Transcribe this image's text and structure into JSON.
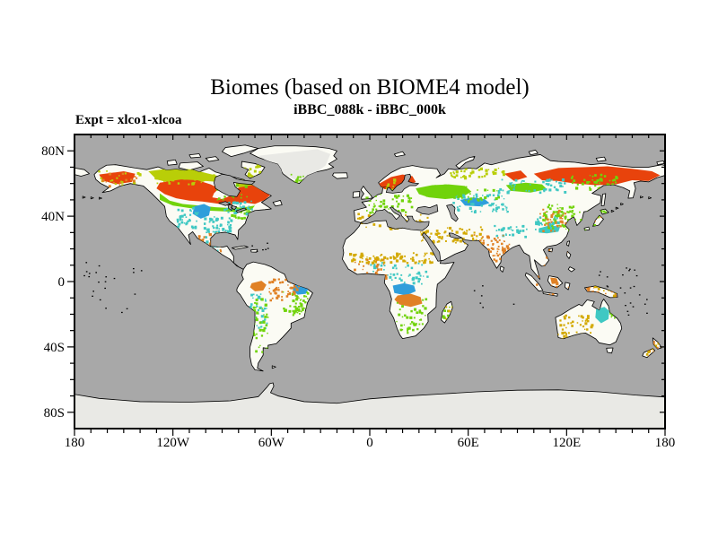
{
  "header": {
    "title": "Biomes (based on BIOME4 model)",
    "subtitle": "iBBC_088k - iBBC_000k",
    "experiment_label": "Expt = xlco1-xlcoa"
  },
  "map": {
    "projection": "equirectangular",
    "lon_range": [
      -180,
      180
    ],
    "lat_range": [
      -90,
      90
    ],
    "colors": {
      "ocean": "#a8a8a8",
      "land": "#fbfbf4",
      "ice": "#e9e9e5",
      "coast": "#000000",
      "red": "#e8430c",
      "olive": "#b9ce08",
      "green": "#71d30b",
      "blue": "#2f9edb",
      "cyan": "#3fc8c3",
      "mustard": "#d3a902",
      "orange": "#e08125"
    },
    "x_axis": {
      "minor_step": 10,
      "major": [
        {
          "value": -180,
          "label": "180"
        },
        {
          "value": -120,
          "label": "120W"
        },
        {
          "value": -60,
          "label": "60W"
        },
        {
          "value": 0,
          "label": "0"
        },
        {
          "value": 60,
          "label": "60E"
        },
        {
          "value": 120,
          "label": "120E"
        },
        {
          "value": 180,
          "label": "180"
        }
      ]
    },
    "y_axis": {
      "minor_step": 10,
      "major": [
        {
          "value": 80,
          "label": "80N"
        },
        {
          "value": 40,
          "label": "40N"
        },
        {
          "value": 0,
          "label": "0"
        },
        {
          "value": -40,
          "label": "40S"
        },
        {
          "value": -80,
          "label": "80S"
        }
      ]
    },
    "speckles": [
      {
        "b": [
          78,
          50,
          17,
          10
        ],
        "c": "cyan",
        "n": 55,
        "s": 1
      },
      {
        "b": [
          95,
          44,
          14,
          8
        ],
        "c": "green",
        "n": 40,
        "s": 2
      },
      {
        "b": [
          74,
          60,
          16,
          11
        ],
        "c": "orange",
        "n": 40,
        "s": 3
      },
      {
        "b": [
          74,
          62,
          14,
          9
        ],
        "c": "cyan",
        "n": 18,
        "s": 4
      },
      {
        "b": [
          105,
          97,
          12,
          22
        ],
        "c": "cyan",
        "n": 45,
        "s": 5
      },
      {
        "b": [
          108,
          100,
          10,
          33
        ],
        "c": "green",
        "n": 45,
        "s": 6
      },
      {
        "b": [
          118,
          88,
          20,
          13
        ],
        "c": "orange",
        "n": 55,
        "s": 7
      },
      {
        "b": [
          126,
          96,
          16,
          12
        ],
        "c": "green",
        "n": 30,
        "s": 8
      },
      {
        "b": [
          166,
          72,
          52,
          6
        ],
        "c": "mustard",
        "n": 85,
        "s": 9
      },
      {
        "b": [
          180,
          78,
          35,
          13
        ],
        "c": "cyan",
        "n": 55,
        "s": 10
      },
      {
        "b": [
          196,
          100,
          18,
          21
        ],
        "c": "green",
        "n": 45,
        "s": 11
      },
      {
        "b": [
          170,
          76,
          20,
          12
        ],
        "c": "orange",
        "n": 28,
        "s": 12
      },
      {
        "b": [
          176,
          36,
          30,
          12
        ],
        "c": "green",
        "n": 60,
        "s": 13
      },
      {
        "b": [
          172,
          48,
          44,
          9
        ],
        "c": "mustard",
        "n": 55,
        "s": 14
      },
      {
        "b": [
          218,
          56,
          30,
          10
        ],
        "c": "mustard",
        "n": 45,
        "s": 15
      },
      {
        "b": [
          230,
          36,
          35,
          11
        ],
        "c": "cyan",
        "n": 60,
        "s": 16
      },
      {
        "b": [
          252,
          66,
          16,
          11
        ],
        "c": "orange",
        "n": 35,
        "s": 17
      },
      {
        "b": [
          285,
          42,
          20,
          16
        ],
        "c": "green",
        "n": 70,
        "s": 18
      },
      {
        "b": [
          283,
          45,
          17,
          14
        ],
        "c": "orange",
        "n": 35,
        "s": 19
      },
      {
        "b": [
          280,
          50,
          15,
          8
        ],
        "c": "cyan",
        "n": 25,
        "s": 20
      },
      {
        "b": [
          258,
          26,
          42,
          9
        ],
        "c": "cyan",
        "n": 50,
        "s": 21
      },
      {
        "b": [
          298,
          24,
          32,
          9
        ],
        "c": "green",
        "n": 40,
        "s": 22
      },
      {
        "b": [
          306,
          46,
          18,
          12
        ],
        "c": "green",
        "n": 26,
        "s": 23
      },
      {
        "b": [
          308,
          48,
          16,
          11
        ],
        "c": "orange",
        "n": 18,
        "s": 24
      },
      {
        "b": [
          286,
          68,
          14,
          12
        ],
        "c": "orange",
        "n": 26,
        "s": 25
      },
      {
        "b": [
          277,
          85,
          55,
          14
        ],
        "c": "orange",
        "n": 40,
        "s": 26
      },
      {
        "b": [
          294,
          110,
          21,
          15
        ],
        "c": "mustard",
        "n": 50,
        "s": 27
      },
      {
        "b": [
          324,
          104,
          8,
          8
        ],
        "c": "green",
        "n": 22,
        "s": 28
      },
      {
        "b": [
          346,
          126,
          13,
          10
        ],
        "c": "orange",
        "n": 16,
        "s": 29
      },
      {
        "b": [
          348,
          127,
          11,
          9
        ],
        "c": "mustard",
        "n": 12,
        "s": 30
      },
      {
        "b": [
          100,
          17,
          18,
          10
        ],
        "c": "olive",
        "n": 30,
        "s": 31
      },
      {
        "b": [
          14,
          21,
          26,
          10
        ],
        "c": "olive",
        "n": 20,
        "s": 32
      },
      {
        "b": [
          16,
          23,
          22,
          9
        ],
        "c": "orange",
        "n": 18,
        "s": 33
      },
      {
        "b": [
          62,
          44,
          13,
          14
        ],
        "c": "cyan",
        "n": 35,
        "s": 34
      },
      {
        "b": [
          130,
          24,
          10,
          6
        ],
        "c": "green",
        "n": 14,
        "s": 35
      },
      {
        "b": [
          186,
          26,
          10,
          8
        ],
        "c": "olive",
        "n": 16,
        "s": 36
      },
      {
        "b": [
          225,
          20,
          38,
          6
        ],
        "c": "olive",
        "n": 40,
        "s": 37
      },
      {
        "b": [
          224,
          103,
          7,
          12
        ],
        "c": "green",
        "n": 18,
        "s": 38
      },
      {
        "b": [
          225,
          104,
          6,
          11
        ],
        "c": "mustard",
        "n": 10,
        "s": 39
      },
      {
        "b": [
          255,
          55,
          22,
          7
        ],
        "c": "cyan",
        "n": 30,
        "s": 40
      },
      {
        "b": [
          130,
          98,
          12,
          12
        ],
        "c": "green",
        "n": 25,
        "s": 41
      },
      {
        "b": [
          90,
          40,
          18,
          8
        ],
        "c": "cyan",
        "n": 30,
        "s": 42
      },
      {
        "b": [
          210,
          58,
          12,
          8
        ],
        "c": "mustard",
        "n": 20,
        "s": 43
      },
      {
        "b": [
          214,
          30,
          26,
          8
        ],
        "c": "green",
        "n": 35,
        "s": 44
      },
      {
        "b": [
          240,
          60,
          22,
          10
        ],
        "c": "orange",
        "n": 25,
        "s": 45
      },
      {
        "b": [
          312,
          92,
          20,
          7
        ],
        "c": "orange",
        "n": 22,
        "s": 46
      },
      {
        "b": [
          316,
          92,
          18,
          7
        ],
        "c": "mustard",
        "n": 14,
        "s": 47
      },
      {
        "b": [
          46,
          24,
          40,
          6
        ],
        "c": "olive",
        "n": 30,
        "s": 48
      },
      {
        "b": [
          228,
          33,
          30,
          8
        ],
        "c": "green",
        "n": 30,
        "s": 49
      },
      {
        "b": [
          86,
          30,
          30,
          10
        ],
        "c": "green",
        "n": 20,
        "s": 50
      }
    ],
    "island_dots": [
      {
        "b": [
          2,
          78,
          40,
          32
        ],
        "c": "coast",
        "n": 22,
        "s": 51
      },
      {
        "b": [
          318,
          80,
          30,
          14
        ],
        "c": "coast",
        "n": 14,
        "s": 52
      },
      {
        "b": [
          335,
          96,
          18,
          16
        ],
        "c": "coast",
        "n": 10,
        "s": 53
      },
      {
        "b": [
          238,
          88,
          30,
          20
        ],
        "c": "coast",
        "n": 6,
        "s": 54
      },
      {
        "b": [
          106,
          66,
          12,
          6
        ],
        "c": "coast",
        "n": 6,
        "s": 55
      }
    ]
  }
}
